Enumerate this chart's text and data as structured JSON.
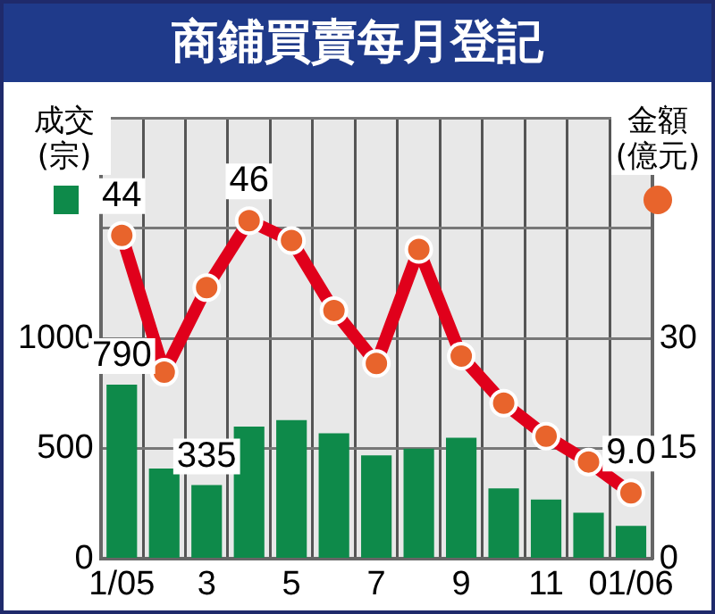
{
  "chart_data": {
    "type": "bar",
    "title": "商鋪買賣每月登記",
    "ylabel": "成交(宗)",
    "y2label": "金額(億元)",
    "categories": [
      "1/05",
      null,
      "3",
      null,
      "5",
      null,
      "7",
      null,
      "9",
      null,
      "11",
      null,
      "01/06"
    ],
    "series": [
      {
        "color": "#0e8a4a",
        "values": [
          790,
          410,
          335,
          600,
          630,
          570,
          470,
          500,
          550,
          320,
          270,
          210,
          150
        ],
        "value_labels": [
          "790",
          null,
          "335",
          null,
          null,
          null,
          null,
          null,
          null,
          null,
          null,
          null,
          null
        ]
      },
      {
        "type": "line",
        "axis": "y2",
        "color": "#e0001b",
        "marker": "circle",
        "values": [
          44,
          25.4,
          36.9,
          46,
          43.3,
          33.8,
          26.6,
          42.1,
          27.6,
          21.2,
          16.7,
          13.2,
          9.0
        ],
        "value_labels": [
          "44",
          null,
          null,
          "46",
          null,
          null,
          null,
          null,
          null,
          null,
          null,
          null,
          "9.0"
        ]
      }
    ],
    "ylim": [
      0,
      2000
    ],
    "yticks": [
      0,
      500,
      1000,
      {
        "value": 1500,
        "label": null
      },
      {
        "value": 2000,
        "label": null
      }
    ],
    "y2lim": [
      0,
      60
    ],
    "y2ticks": [
      0,
      15,
      30
    ],
    "grid": true,
    "legend": false
  }
}
